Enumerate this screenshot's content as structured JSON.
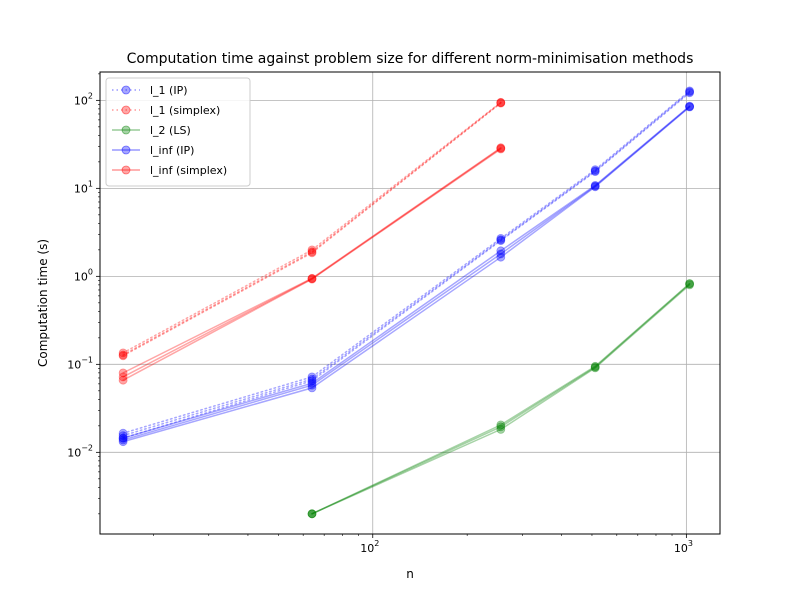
{
  "chart_data": {
    "type": "line",
    "title": "Computation time against problem size for different norm-minimisation methods",
    "xlabel": "n",
    "ylabel": "Computation time (s)",
    "xscale": "log",
    "yscale": "log",
    "xlim": [
      13.5,
      1280
    ],
    "ylim": [
      0.00118,
      210
    ],
    "grid": true,
    "legend_position": "upper-left",
    "x_ticks": [
      {
        "value": 100,
        "base": "10",
        "exp": "2"
      },
      {
        "value": 1000,
        "base": "10",
        "exp": "3"
      }
    ],
    "y_ticks": [
      {
        "value": 0.01,
        "base": "10",
        "exp": "−2"
      },
      {
        "value": 0.1,
        "base": "10",
        "exp": "−1"
      },
      {
        "value": 1,
        "base": "10",
        "exp": "0"
      },
      {
        "value": 10,
        "base": "10",
        "exp": "1"
      },
      {
        "value": 100,
        "base": "10",
        "exp": "2"
      }
    ],
    "series": [
      {
        "name": "l_1 (IP)",
        "color": "#0000ff",
        "linestyle": "dotted",
        "runs": [
          {
            "x": [
              16,
              64,
              256,
              512,
              1024
            ],
            "y": [
              0.0165,
              0.072,
              2.7,
              16.3,
              128
            ]
          },
          {
            "x": [
              16,
              64,
              256,
              512,
              1024
            ],
            "y": [
              0.0155,
              0.068,
              2.6,
              15.8,
              125
            ]
          },
          {
            "x": [
              16,
              64,
              256,
              512,
              1024
            ],
            "y": [
              0.0145,
              0.065,
              2.55,
              15.5,
              122
            ]
          }
        ]
      },
      {
        "name": "l_1 (simplex)",
        "color": "#ff0000",
        "linestyle": "dotted",
        "runs": [
          {
            "x": [
              16,
              64,
              256
            ],
            "y": [
              0.135,
              2.0,
              95
            ]
          },
          {
            "x": [
              16,
              64,
              256
            ],
            "y": [
              0.128,
              1.9,
              94
            ]
          },
          {
            "x": [
              16,
              64,
              256
            ],
            "y": [
              0.125,
              1.85,
              93
            ]
          }
        ]
      },
      {
        "name": "l_2 (LS)",
        "color": "#008000",
        "linestyle": "solid",
        "runs": [
          {
            "x": [
              64,
              256,
              512,
              1024
            ],
            "y": [
              0.002,
              0.0205,
              0.095,
              0.83
            ]
          },
          {
            "x": [
              64,
              256,
              512,
              1024
            ],
            "y": [
              0.002,
              0.0195,
              0.093,
              0.82
            ]
          },
          {
            "x": [
              64,
              256,
              512,
              1024
            ],
            "y": [
              0.002,
              0.0182,
              0.091,
              0.8
            ]
          }
        ]
      },
      {
        "name": "l_inf (IP)",
        "color": "#0000ff",
        "linestyle": "solid",
        "runs": [
          {
            "x": [
              16,
              64,
              256,
              512,
              1024
            ],
            "y": [
              0.0145,
              0.061,
              1.95,
              10.8,
              86
            ]
          },
          {
            "x": [
              16,
              64,
              256,
              512,
              1024
            ],
            "y": [
              0.0138,
              0.058,
              1.8,
              10.6,
              85
            ]
          },
          {
            "x": [
              16,
              64,
              256,
              512,
              1024
            ],
            "y": [
              0.0132,
              0.054,
              1.65,
              10.4,
              84
            ]
          }
        ]
      },
      {
        "name": "l_inf (simplex)",
        "color": "#ff0000",
        "linestyle": "solid",
        "runs": [
          {
            "x": [
              16,
              64,
              256
            ],
            "y": [
              0.08,
              0.95,
              29
            ]
          },
          {
            "x": [
              16,
              64,
              256
            ],
            "y": [
              0.072,
              0.94,
              28.5
            ]
          },
          {
            "x": [
              16,
              64,
              256
            ],
            "y": [
              0.066,
              0.93,
              28
            ]
          }
        ]
      }
    ]
  }
}
